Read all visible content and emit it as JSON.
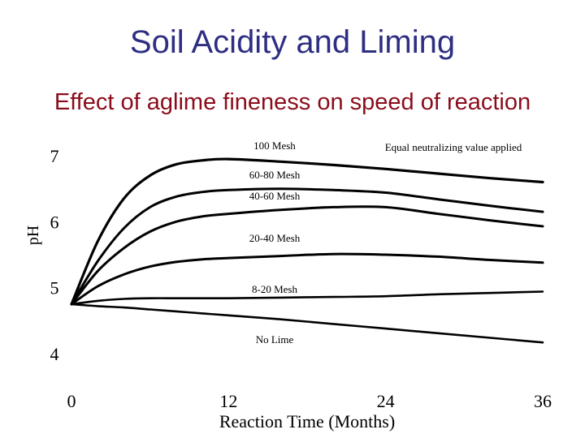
{
  "slide": {
    "title": "Soil Acidity and Liming",
    "subtitle": "Effect of aglime fineness on speed of reaction"
  },
  "colors": {
    "title": "#2e2e82",
    "subtitle": "#8b0d1c",
    "curves": "#000000"
  },
  "chart_data": {
    "type": "line",
    "xlabel": "Reaction Time (Months)",
    "ylabel": "pH",
    "xlim": [
      0,
      36
    ],
    "ylim": [
      4,
      7
    ],
    "x_ticks": [
      0,
      12,
      24,
      36
    ],
    "y_ticks": [
      4,
      5,
      6,
      7
    ],
    "grid": false,
    "annotation": "Equal neutralizing value applied",
    "series": [
      {
        "name": "100 Mesh",
        "x": [
          0,
          2,
          4,
          6,
          8,
          10,
          12,
          16,
          20,
          24,
          28,
          32,
          36
        ],
        "y": [
          4.75,
          5.7,
          6.35,
          6.7,
          6.87,
          6.93,
          6.95,
          6.91,
          6.86,
          6.8,
          6.73,
          6.66,
          6.6
        ]
      },
      {
        "name": "60-80 Mesh",
        "x": [
          0,
          2,
          4,
          6,
          8,
          10,
          12,
          16,
          20,
          24,
          28,
          32,
          36
        ],
        "y": [
          4.75,
          5.4,
          5.9,
          6.22,
          6.38,
          6.45,
          6.48,
          6.5,
          6.48,
          6.44,
          6.34,
          6.24,
          6.15
        ]
      },
      {
        "name": "40-60 Mesh",
        "x": [
          0,
          2,
          4,
          6,
          8,
          10,
          12,
          16,
          20,
          24,
          28,
          32,
          36
        ],
        "y": [
          4.75,
          5.25,
          5.6,
          5.85,
          6.0,
          6.08,
          6.12,
          6.18,
          6.22,
          6.22,
          6.12,
          6.02,
          5.93
        ]
      },
      {
        "name": "20-40 Mesh",
        "x": [
          0,
          2,
          4,
          6,
          8,
          10,
          12,
          16,
          20,
          24,
          28,
          32,
          36
        ],
        "y": [
          4.75,
          5.02,
          5.2,
          5.32,
          5.39,
          5.43,
          5.45,
          5.48,
          5.51,
          5.5,
          5.47,
          5.42,
          5.38
        ]
      },
      {
        "name": "8-20 Mesh",
        "x": [
          0,
          2,
          4,
          6,
          8,
          10,
          12,
          16,
          20,
          24,
          28,
          32,
          36
        ],
        "y": [
          4.75,
          4.8,
          4.83,
          4.84,
          4.84,
          4.84,
          4.84,
          4.85,
          4.86,
          4.87,
          4.9,
          4.92,
          4.94
        ]
      },
      {
        "name": "No Lime",
        "x": [
          0,
          2,
          4,
          6,
          8,
          10,
          12,
          16,
          20,
          24,
          28,
          32,
          36
        ],
        "y": [
          4.75,
          4.72,
          4.7,
          4.67,
          4.64,
          4.61,
          4.58,
          4.52,
          4.45,
          4.38,
          4.31,
          4.24,
          4.17
        ]
      }
    ]
  }
}
